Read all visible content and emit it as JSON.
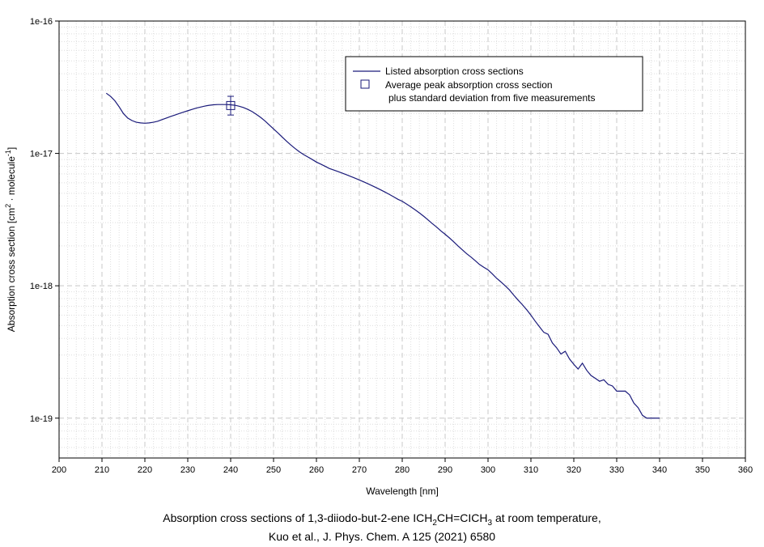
{
  "chart_data": {
    "type": "line",
    "xlabel": "Wavelength [nm]",
    "ylabel": "Absorption cross section [cm² · molecule⁻¹]",
    "ylabel_parts": {
      "main": "Absorption cross section [cm",
      "sup1": "2",
      "mid": " · molecule",
      "sup2": "-1",
      "end": "]"
    },
    "xlim": [
      200,
      360
    ],
    "ylim": [
      5e-20,
      1e-16
    ],
    "yscale": "log",
    "xticks": [
      "200",
      "210",
      "220",
      "230",
      "240",
      "250",
      "260",
      "270",
      "280",
      "290",
      "300",
      "310",
      "320",
      "330",
      "340",
      "350",
      "360"
    ],
    "yticks": [
      {
        "value": 1e-16,
        "label": "1e-16"
      },
      {
        "value": 1e-17,
        "label": "1e-17"
      },
      {
        "value": 1e-18,
        "label": "1e-18"
      },
      {
        "value": 1e-19,
        "label": "1e-19"
      }
    ],
    "grid": true,
    "legend_position": "top-right",
    "series": [
      {
        "name": "Listed absorption cross sections",
        "color": "#1a1a7a",
        "x": [
          211,
          212,
          213,
          214,
          215,
          216,
          217,
          218,
          219,
          220,
          221,
          222,
          223,
          224,
          225,
          226,
          227,
          228,
          229,
          230,
          231,
          232,
          233,
          234,
          235,
          236,
          237,
          238,
          239,
          240,
          241,
          242,
          243,
          244,
          245,
          246,
          247,
          248,
          249,
          250,
          251,
          252,
          253,
          254,
          255,
          256,
          257,
          258,
          259,
          260,
          261,
          262,
          263,
          264,
          265,
          266,
          267,
          268,
          269,
          270,
          271,
          272,
          273,
          274,
          275,
          276,
          277,
          278,
          279,
          280,
          281,
          282,
          283,
          284,
          285,
          286,
          287,
          288,
          289,
          290,
          291,
          292,
          293,
          294,
          295,
          296,
          297,
          298,
          299,
          300,
          301,
          302,
          303,
          304,
          305,
          306,
          307,
          308,
          309,
          310,
          311,
          312,
          313,
          314,
          315,
          316,
          317,
          318,
          319,
          320,
          321,
          322,
          323,
          324,
          325,
          326,
          327,
          328,
          329,
          330,
          331,
          332,
          333,
          334,
          335,
          336,
          337,
          338,
          339,
          340
        ],
        "y": [
          2.85e-17,
          2.7e-17,
          2.5e-17,
          2.25e-17,
          2e-17,
          1.85e-17,
          1.77e-17,
          1.72e-17,
          1.7e-17,
          1.69e-17,
          1.7e-17,
          1.72e-17,
          1.75e-17,
          1.8e-17,
          1.85e-17,
          1.9e-17,
          1.95e-17,
          2e-17,
          2.05e-17,
          2.1e-17,
          2.15e-17,
          2.2e-17,
          2.24e-17,
          2.28e-17,
          2.31e-17,
          2.33e-17,
          2.34e-17,
          2.34e-17,
          2.34e-17,
          2.33e-17,
          2.31e-17,
          2.27e-17,
          2.22e-17,
          2.15e-17,
          2.07e-17,
          1.97e-17,
          1.87e-17,
          1.76e-17,
          1.64e-17,
          1.53e-17,
          1.43e-17,
          1.33e-17,
          1.24e-17,
          1.16e-17,
          1.09e-17,
          1.03e-17,
          9.8e-18,
          9.4e-18,
          9e-18,
          8.6e-18,
          8.3e-18,
          8e-18,
          7.7e-18,
          7.5e-18,
          7.3e-18,
          7.1e-18,
          6.9e-18,
          6.7e-18,
          6.5e-18,
          6.3e-18,
          6.1e-18,
          5.9e-18,
          5.7e-18,
          5.5e-18,
          5.3e-18,
          5.1e-18,
          4.9e-18,
          4.7e-18,
          4.5e-18,
          4.35e-18,
          4.15e-18,
          3.95e-18,
          3.75e-18,
          3.55e-18,
          3.35e-18,
          3.15e-18,
          2.95e-18,
          2.78e-18,
          2.6e-18,
          2.45e-18,
          2.3e-18,
          2.15e-18,
          2e-18,
          1.87e-18,
          1.75e-18,
          1.65e-18,
          1.55e-18,
          1.45e-18,
          1.38e-18,
          1.32e-18,
          1.23e-18,
          1.14e-18,
          1.07e-18,
          1e-18,
          9.3e-19,
          8.5e-19,
          7.8e-19,
          7.2e-19,
          6.6e-19,
          6e-19,
          5.4e-19,
          4.9e-19,
          4.45e-19,
          4.3e-19,
          3.7e-19,
          3.4e-19,
          3.05e-19,
          3.2e-19,
          2.8e-19,
          2.55e-19,
          2.35e-19,
          2.6e-19,
          2.3e-19,
          2.1e-19,
          2e-19,
          1.9e-19,
          1.95e-19,
          1.8e-19,
          1.75e-19,
          1.6e-19,
          1.6e-19,
          1.6e-19,
          1.5e-19,
          1.3e-19,
          1.2e-19,
          1.05e-19,
          1e-19,
          1e-19,
          1e-19,
          1e-19
        ]
      }
    ],
    "markers": [
      {
        "name": "Average peak absorption cross section plus standard deviation from five measurements",
        "x": 240,
        "y": 2.3e-17,
        "yerr_low": 1.95e-17,
        "yerr_high": 2.7e-17,
        "shape": "open-square"
      }
    ]
  },
  "legend": {
    "line_label": "Listed absorption cross sections",
    "marker_label_1": "Average peak absorption cross section",
    "marker_label_2": "plus standard deviation from five measurements"
  },
  "caption": {
    "line1_a": "Absorption cross sections of 1,3-diiodo-but-2-ene ICH",
    "line1_sub1": "2",
    "line1_b": "CH=CICH",
    "line1_sub2": "3",
    "line1_c": " at room temperature,",
    "line2": "Kuo et al., J. Phys. Chem. A 125 (2021) 6580"
  },
  "colors": {
    "series": "#1a1a7a",
    "grid": "#c8c8c8",
    "axis": "#000000"
  }
}
